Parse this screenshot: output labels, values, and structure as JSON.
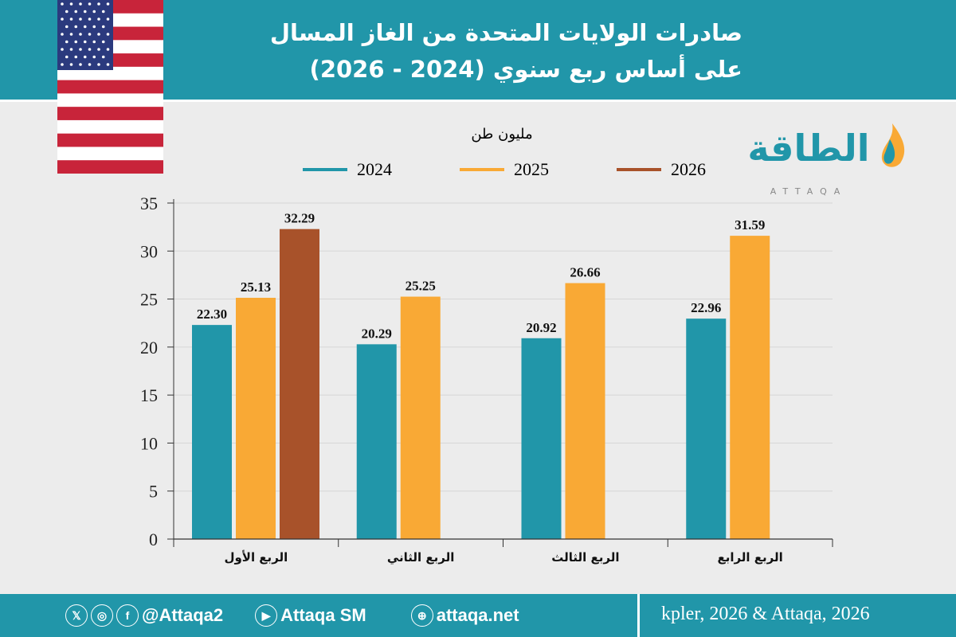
{
  "header": {
    "title_line1": "صادرات الولايات المتحدة من الغاز المسال",
    "title_line2": "على أساس ربع سنوي (2024 - 2026)"
  },
  "logo": {
    "text": "الطاقة",
    "subtext": "ATTAQA"
  },
  "chart_data": {
    "type": "bar",
    "ylabel": "مليون طن",
    "categories": [
      "الربع الأول",
      "الربع الثاني",
      "الربع الثالث",
      "الربع الرابع"
    ],
    "series": [
      {
        "name": "2024",
        "color": "#2196a9",
        "values": [
          22.3,
          20.29,
          20.92,
          22.96
        ]
      },
      {
        "name": "2025",
        "color": "#f9a935",
        "values": [
          25.13,
          25.25,
          26.66,
          31.59
        ]
      },
      {
        "name": "2026",
        "color": "#a8522a",
        "values": [
          32.29,
          null,
          null,
          null
        ]
      }
    ],
    "ylim": [
      0,
      35
    ],
    "yticks": [
      0,
      5,
      10,
      15,
      20,
      25,
      30,
      35
    ],
    "grid": true,
    "legend": "top"
  },
  "footer": {
    "handle": "@Attaqa2",
    "youtube": "Attaqa SM",
    "website": "attaqa.net",
    "source": "kpler, 2026 & Attaqa, 2026"
  }
}
